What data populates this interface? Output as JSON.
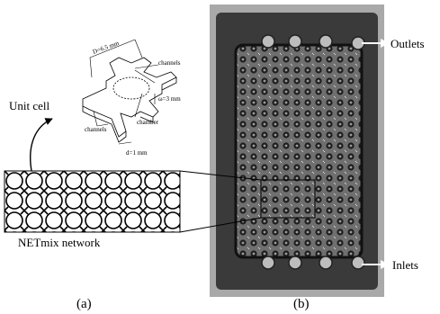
{
  "panel_a": {
    "unit_cell_label": "Unit cell",
    "dimensions": {
      "chamber_diameter": "D=6.5 mm",
      "depth": "ω=3 mm",
      "channel_width": "d=1 mm"
    },
    "annotations": {
      "channels_top": "channels",
      "chamber": "chamber",
      "channels_bottom": "channels"
    },
    "network_label": "NETmix network",
    "caption": "(a)"
  },
  "panel_b": {
    "outlets_label": "Outlets",
    "inlets_label": "Inlets",
    "caption": "(b)"
  }
}
